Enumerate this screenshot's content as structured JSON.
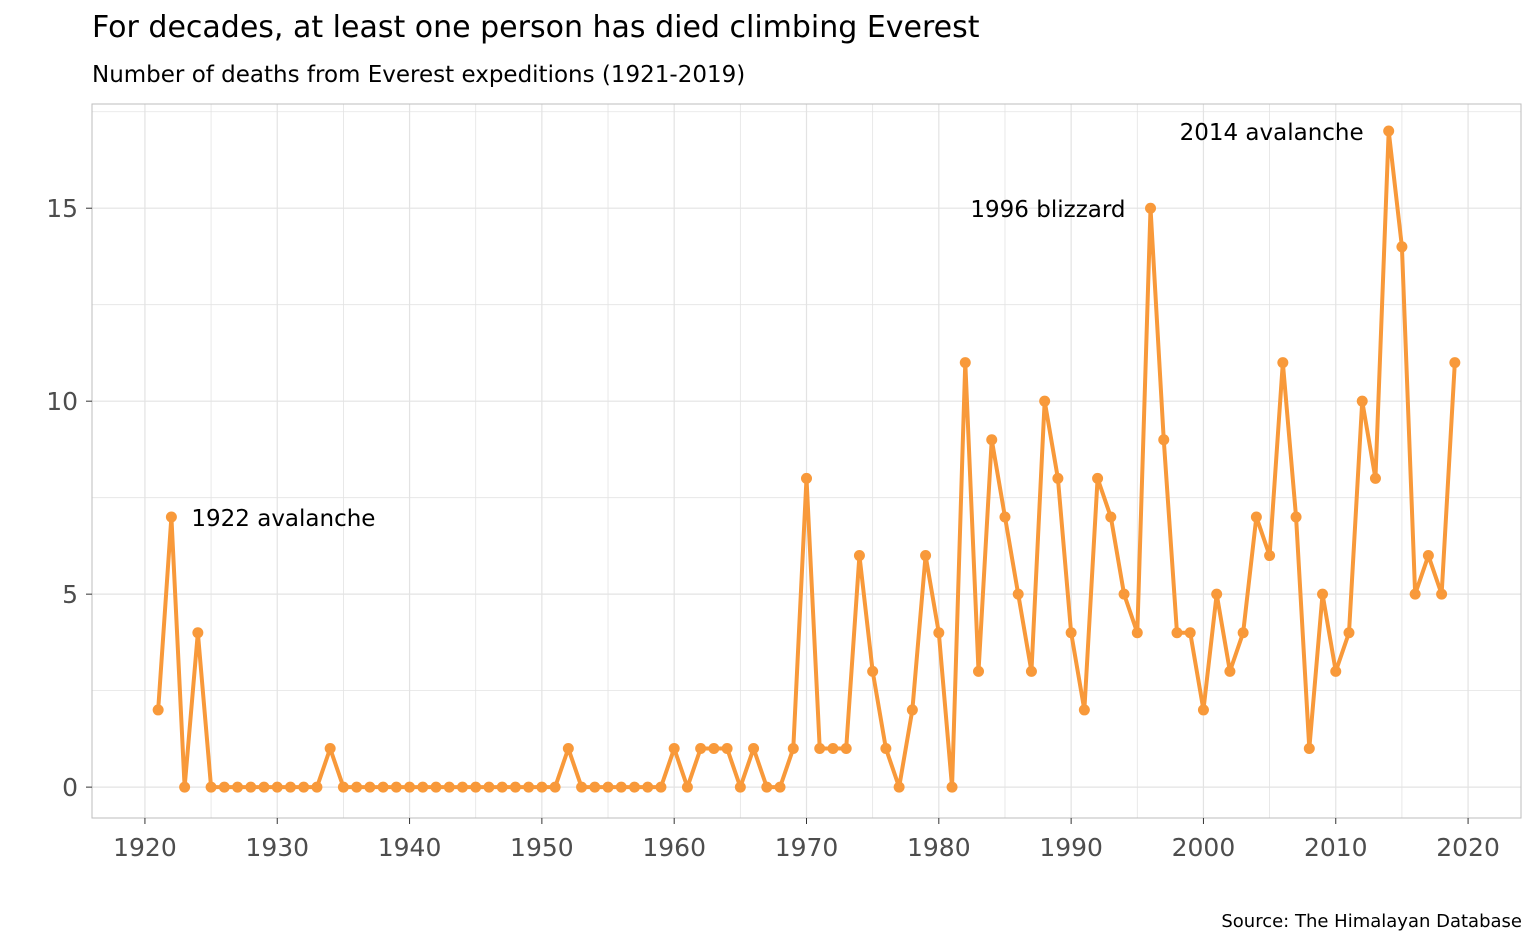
{
  "title": "For decades, at least one person has died climbing Everest",
  "subtitle": "Number of deaths from Everest expeditions (1921-2019)",
  "caption": "Source: The Himalayan Database",
  "colors": {
    "line": "#F8993A",
    "grid": "#e3e3e3",
    "border": "#bdbdbd",
    "tick_text": "#4d4d4d"
  },
  "chart_data": {
    "type": "line",
    "title": "For decades, at least one person has died climbing Everest",
    "subtitle": "Number of deaths from Everest expeditions (1921-2019)",
    "xlabel": "",
    "ylabel": "",
    "xlim": [
      1916,
      2024
    ],
    "ylim": [
      -0.8,
      17.7
    ],
    "xticks": [
      1920,
      1930,
      1940,
      1950,
      1960,
      1970,
      1980,
      1990,
      2000,
      2010,
      2020
    ],
    "yticks": [
      0,
      5,
      10,
      15
    ],
    "grid": true,
    "legend": "none",
    "x": [
      1921,
      1922,
      1923,
      1924,
      1925,
      1926,
      1927,
      1928,
      1929,
      1930,
      1931,
      1932,
      1933,
      1934,
      1935,
      1936,
      1937,
      1938,
      1939,
      1940,
      1941,
      1942,
      1943,
      1944,
      1945,
      1946,
      1947,
      1948,
      1949,
      1950,
      1951,
      1952,
      1953,
      1954,
      1955,
      1956,
      1957,
      1958,
      1959,
      1960,
      1961,
      1962,
      1963,
      1964,
      1965,
      1966,
      1967,
      1968,
      1969,
      1970,
      1971,
      1972,
      1973,
      1974,
      1975,
      1976,
      1977,
      1978,
      1979,
      1980,
      1981,
      1982,
      1983,
      1984,
      1985,
      1986,
      1987,
      1988,
      1989,
      1990,
      1991,
      1992,
      1993,
      1994,
      1995,
      1996,
      1997,
      1998,
      1999,
      2000,
      2001,
      2002,
      2003,
      2004,
      2005,
      2006,
      2007,
      2008,
      2009,
      2010,
      2011,
      2012,
      2013,
      2014,
      2015,
      2016,
      2017,
      2018,
      2019
    ],
    "y": [
      2,
      7,
      0,
      4,
      0,
      0,
      0,
      0,
      0,
      0,
      0,
      0,
      0,
      1,
      0,
      0,
      0,
      0,
      0,
      0,
      0,
      0,
      0,
      0,
      0,
      0,
      0,
      0,
      0,
      0,
      0,
      1,
      0,
      0,
      0,
      0,
      0,
      0,
      0,
      1,
      0,
      1,
      1,
      1,
      0,
      1,
      0,
      0,
      1,
      8,
      1,
      1,
      1,
      6,
      3,
      1,
      0,
      2,
      6,
      4,
      0,
      11,
      3,
      9,
      7,
      5,
      3,
      10,
      8,
      4,
      2,
      8,
      7,
      5,
      4,
      15,
      9,
      4,
      4,
      2,
      5,
      3,
      4,
      7,
      6,
      11,
      7,
      1,
      5,
      3,
      4,
      10,
      8,
      17,
      14,
      5,
      6,
      5,
      11
    ],
    "annotations": [
      {
        "text": "1922 avalanche",
        "x": 1922,
        "y": 7,
        "side": "right"
      },
      {
        "text": "1996 blizzard",
        "x": 1996,
        "y": 15,
        "side": "left"
      },
      {
        "text": "2014 avalanche",
        "x": 2014,
        "y": 17,
        "side": "left"
      }
    ]
  }
}
